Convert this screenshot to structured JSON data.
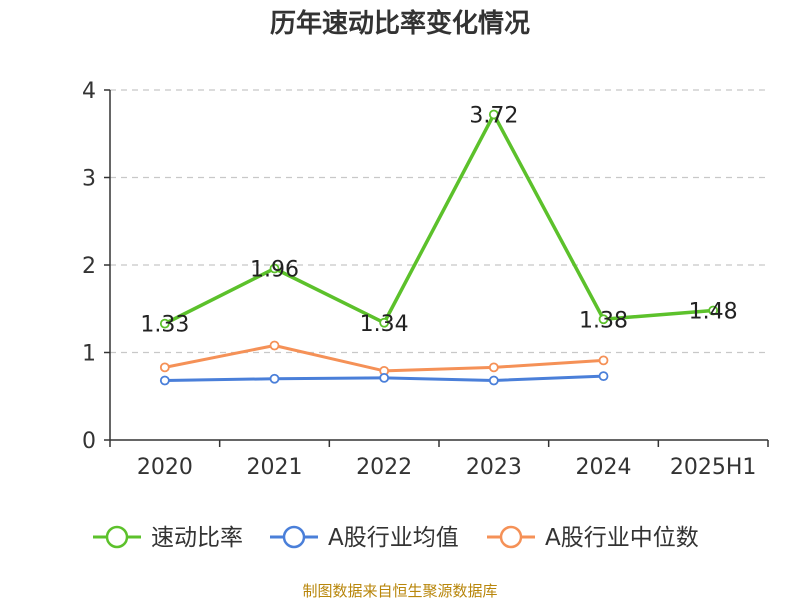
{
  "chart_data": {
    "type": "line",
    "title": "历年速动比率变化情况",
    "categories": [
      "2020",
      "2021",
      "2022",
      "2023",
      "2024",
      "2025H1"
    ],
    "ylim": [
      0,
      4
    ],
    "yticks": [
      "0",
      "1",
      "2",
      "3",
      "4"
    ],
    "grid": true,
    "legend_position": "bottom",
    "series": [
      {
        "name": "速动比率",
        "color": "#5cc12b",
        "values": [
          1.33,
          1.96,
          1.34,
          3.72,
          1.38,
          1.48
        ],
        "labels": [
          "1.33",
          "1.96",
          "1.34",
          "3.72",
          "1.38",
          "1.48"
        ]
      },
      {
        "name": "A股行业均值",
        "color": "#4a7fd9",
        "values": [
          0.68,
          0.7,
          0.71,
          0.68,
          0.73,
          null
        ]
      },
      {
        "name": "A股行业中位数",
        "color": "#f59157",
        "values": [
          0.83,
          1.08,
          0.79,
          0.83,
          0.91,
          null
        ]
      }
    ]
  },
  "source": "制图数据来自恒生聚源数据库"
}
